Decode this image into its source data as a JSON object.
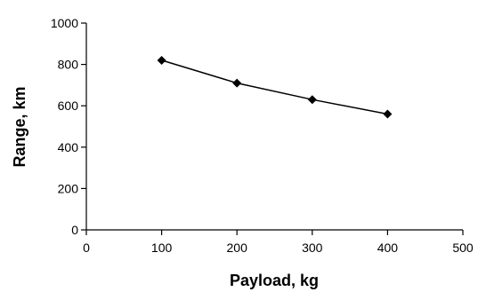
{
  "chart_data": {
    "type": "line",
    "title": "",
    "xlabel": "Payload, kg",
    "ylabel": "Range, km",
    "xlim": [
      0,
      500
    ],
    "ylim": [
      0,
      1000
    ],
    "x_ticks": [
      0,
      100,
      200,
      300,
      400,
      500
    ],
    "y_ticks": [
      0,
      200,
      400,
      600,
      800,
      1000
    ],
    "grid": false,
    "legend": "none",
    "series": [
      {
        "color": "#000000",
        "marker": "diamond",
        "x": [
          100,
          200,
          300,
          400
        ],
        "y": [
          820,
          710,
          630,
          560
        ]
      }
    ]
  }
}
